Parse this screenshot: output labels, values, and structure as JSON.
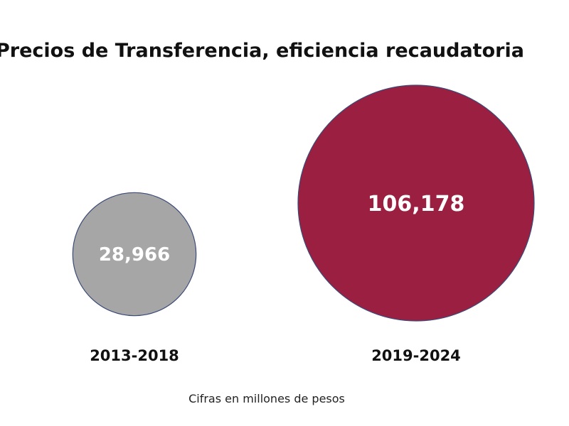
{
  "chart_data": {
    "type": "bubble",
    "title": "Precios de Transferencia, eficiencia recaudatoria",
    "categories": [
      "2013-2018",
      "2019-2024"
    ],
    "values": [
      28966,
      106178
    ],
    "value_labels": [
      "28,966",
      "106,178"
    ],
    "colors": [
      "#a6a6a6",
      "#9b1f40"
    ],
    "note": "Cifras en millones de pesos",
    "grid": false,
    "legend": "none"
  }
}
